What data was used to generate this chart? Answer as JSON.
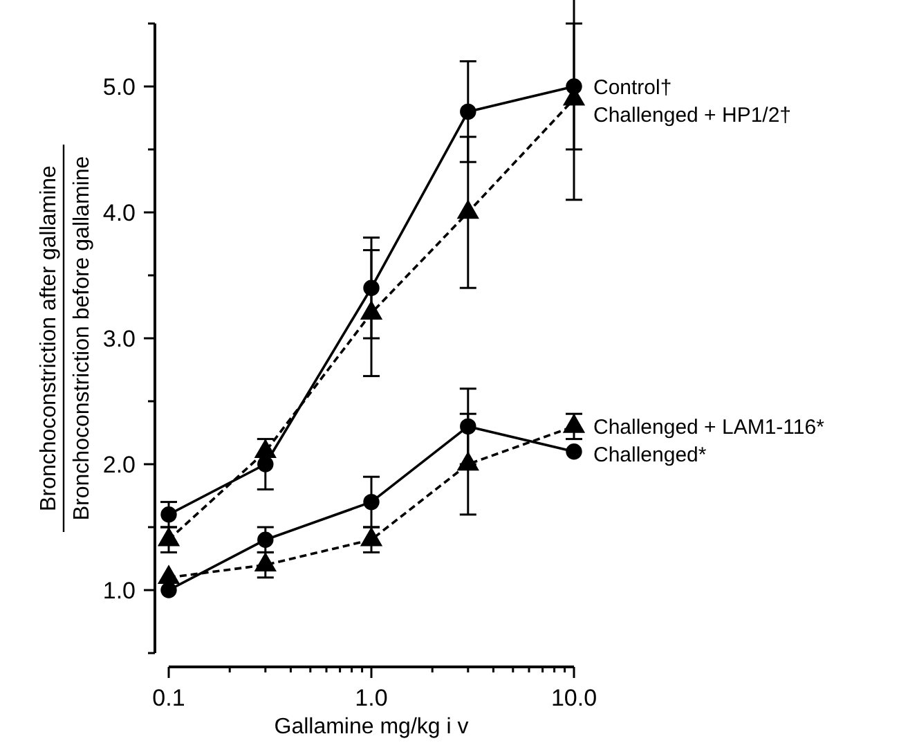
{
  "chart_data": {
    "type": "line",
    "xlabel": "Gallamine mg/kg i v",
    "ylabel": "Bronchoconstriction after gallamine\nBronchoconstriction before gallamine",
    "log": "x",
    "xlim": [
      0.1,
      10
    ],
    "xticks": [
      {
        "value": 0.1,
        "label": "0.1"
      },
      {
        "value": 0.2,
        "label": null
      },
      {
        "value": 0.3,
        "label": null
      },
      {
        "value": 0.4,
        "label": null
      },
      {
        "value": 0.5,
        "label": null
      },
      {
        "value": 0.6,
        "label": null
      },
      {
        "value": 0.7,
        "label": null
      },
      {
        "value": 0.8,
        "label": null
      },
      {
        "value": 0.9,
        "label": null
      },
      {
        "value": 1,
        "label": "1.0"
      },
      {
        "value": 2,
        "label": null
      },
      {
        "value": 3,
        "label": null
      },
      {
        "value": 4,
        "label": null
      },
      {
        "value": 5,
        "label": null
      },
      {
        "value": 6,
        "label": null
      },
      {
        "value": 7,
        "label": null
      },
      {
        "value": 8,
        "label": null
      },
      {
        "value": 9,
        "label": null
      },
      {
        "value": 10,
        "label": "10.0"
      }
    ],
    "ylim": [
      0.5,
      5.5
    ],
    "yticks": [
      {
        "value": 0.5,
        "label": null
      },
      {
        "value": 1,
        "label": "1.0"
      },
      {
        "value": 1.5,
        "label": null
      },
      {
        "value": 2,
        "label": "2.0"
      },
      {
        "value": 2.5,
        "label": null
      },
      {
        "value": 3,
        "label": "3.0"
      },
      {
        "value": 3.5,
        "label": null
      },
      {
        "value": 4,
        "label": "4.0"
      },
      {
        "value": 4.5,
        "label": null
      },
      {
        "value": 5,
        "label": "5.0"
      },
      {
        "value": 5.5,
        "label": null
      }
    ],
    "grid": false,
    "x": [
      0.1,
      0.3,
      1,
      3,
      10
    ],
    "series": [
      {
        "name": "Control†",
        "color": "#000000",
        "marker": "circle",
        "line_style": "solid",
        "values": [
          1.6,
          2.0,
          3.4,
          4.8,
          5.0
        ],
        "errors": [
          0.1,
          0.2,
          0.4,
          0.4,
          0.5
        ]
      },
      {
        "name": "Challenged + HP1/2†",
        "color": "#000000",
        "marker": "triangle",
        "line_style": "dashed",
        "values": [
          1.4,
          2.1,
          3.2,
          4.0,
          4.9
        ],
        "errors": [
          0.1,
          null,
          0.5,
          0.6,
          0.8
        ]
      },
      {
        "name": "Challenged + LAM1-116*",
        "color": "#000000",
        "marker": "triangle",
        "line_style": "dashed",
        "values": [
          1.1,
          1.2,
          1.4,
          2.0,
          2.3
        ],
        "errors": [
          null,
          0.1,
          0.1,
          0.4,
          0.1
        ]
      },
      {
        "name": "Challenged*",
        "color": "#000000",
        "marker": "circle",
        "line_style": "solid",
        "values": [
          1.0,
          1.4,
          1.7,
          2.3,
          2.1
        ],
        "errors": [
          null,
          0.1,
          0.2,
          0.3,
          null
        ]
      }
    ]
  }
}
